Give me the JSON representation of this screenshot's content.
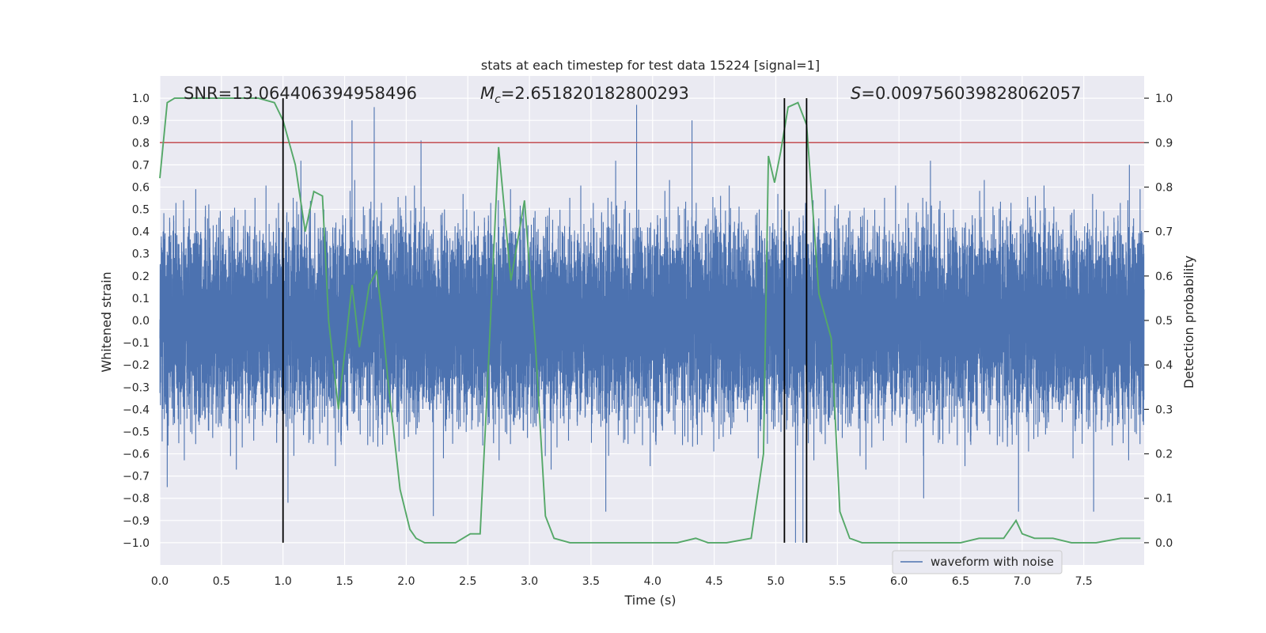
{
  "chart_data": {
    "type": "line",
    "title": "stats at each timestep for test data 15224 [signal=1]",
    "xlabel": "Time (s)",
    "ylabel_left": "Whitened strain",
    "ylabel_right": "Detection probability",
    "xlim": [
      0.0,
      7.99
    ],
    "ylim_left": [
      -1.1,
      1.1
    ],
    "ylim_right": [
      -0.05,
      1.05
    ],
    "x_ticks": [
      "0.0",
      "0.5",
      "1.0",
      "1.5",
      "2.0",
      "2.5",
      "3.0",
      "3.5",
      "4.0",
      "4.5",
      "5.0",
      "5.5",
      "6.0",
      "6.5",
      "7.0",
      "7.5"
    ],
    "y_left_ticks": [
      "1.0",
      "0.9",
      "0.8",
      "0.7",
      "0.6",
      "0.5",
      "0.4",
      "0.3",
      "0.2",
      "0.1",
      "0.0",
      "−0.1",
      "−0.2",
      "−0.3",
      "−0.4",
      "−0.5",
      "−0.6",
      "−0.7",
      "−0.8",
      "−0.9",
      "−1.0"
    ],
    "y_right_ticks": [
      "1.0",
      "0.9",
      "0.8",
      "0.7",
      "0.6",
      "0.5",
      "0.4",
      "0.3",
      "0.2",
      "0.1",
      "0.0"
    ],
    "grid": true,
    "annotations": {
      "snr": "SNR=13.064406394958496",
      "mc_symbol": "M",
      "mc_sub": "c",
      "mc_value": "=2.651820182800293",
      "s_symbol": "S",
      "s_value": "=0.009756039828062057"
    },
    "threshold": {
      "value": 0.9,
      "color": "#c44e52"
    },
    "vertical_markers": [
      1.0,
      5.07,
      5.25
    ],
    "legend": {
      "label": "waveform with noise",
      "placement": "lower-right"
    },
    "series": [
      {
        "name": "waveform with noise",
        "axis": "left",
        "color": "#4c72b0",
        "sample_rate": 2048,
        "noise_std": 0.21,
        "peaks": [
          {
            "t": 1.56,
            "v": 0.9
          },
          {
            "t": 1.74,
            "v": 0.96
          },
          {
            "t": 2.12,
            "v": 0.81
          },
          {
            "t": 3.87,
            "v": 0.97
          },
          {
            "t": 4.32,
            "v": 0.9
          },
          {
            "t": 5.07,
            "v": 0.84
          },
          {
            "t": 5.25,
            "v": 0.72
          },
          {
            "t": 7.87,
            "v": 0.7
          },
          {
            "t": 0.06,
            "v": -0.75
          },
          {
            "t": 1.04,
            "v": -0.82
          },
          {
            "t": 2.22,
            "v": -0.88
          },
          {
            "t": 3.62,
            "v": -0.86
          },
          {
            "t": 5.16,
            "v": -1.0
          },
          {
            "t": 5.22,
            "v": -1.0
          },
          {
            "t": 6.2,
            "v": -0.8
          },
          {
            "t": 6.97,
            "v": -0.86
          },
          {
            "t": 7.58,
            "v": -0.86
          }
        ]
      },
      {
        "name": "detection probability",
        "axis": "right",
        "color": "#55a868",
        "x": [
          0.0,
          0.06,
          0.12,
          0.3,
          0.6,
          0.8,
          0.93,
          1.0,
          1.1,
          1.18,
          1.25,
          1.32,
          1.37,
          1.45,
          1.56,
          1.62,
          1.7,
          1.76,
          1.8,
          1.85,
          1.95,
          2.03,
          2.08,
          2.15,
          2.3,
          2.4,
          2.52,
          2.6,
          2.65,
          2.75,
          2.85,
          2.96,
          3.05,
          3.13,
          3.2,
          3.33,
          3.4,
          3.6,
          3.8,
          4.0,
          4.2,
          4.35,
          4.45,
          4.6,
          4.8,
          4.9,
          4.94,
          4.99,
          5.04,
          5.1,
          5.18,
          5.25,
          5.35,
          5.45,
          5.52,
          5.6,
          5.7,
          5.9,
          6.2,
          6.5,
          6.65,
          6.75,
          6.85,
          6.95,
          7.0,
          7.1,
          7.25,
          7.4,
          7.6,
          7.8,
          7.96
        ],
        "y": [
          0.82,
          0.99,
          1.0,
          1.0,
          1.0,
          1.0,
          0.99,
          0.95,
          0.85,
          0.7,
          0.79,
          0.78,
          0.5,
          0.3,
          0.58,
          0.44,
          0.58,
          0.61,
          0.52,
          0.37,
          0.12,
          0.03,
          0.01,
          0.0,
          0.0,
          0.0,
          0.02,
          0.02,
          0.3,
          0.89,
          0.59,
          0.77,
          0.44,
          0.06,
          0.01,
          0.0,
          0.0,
          0.0,
          0.0,
          0.0,
          0.0,
          0.01,
          0.0,
          0.0,
          0.01,
          0.2,
          0.87,
          0.81,
          0.88,
          0.98,
          0.99,
          0.94,
          0.56,
          0.46,
          0.07,
          0.01,
          0.0,
          0.0,
          0.0,
          0.0,
          0.01,
          0.01,
          0.01,
          0.05,
          0.02,
          0.01,
          0.01,
          0.0,
          0.0,
          0.01,
          0.01
        ]
      }
    ]
  }
}
